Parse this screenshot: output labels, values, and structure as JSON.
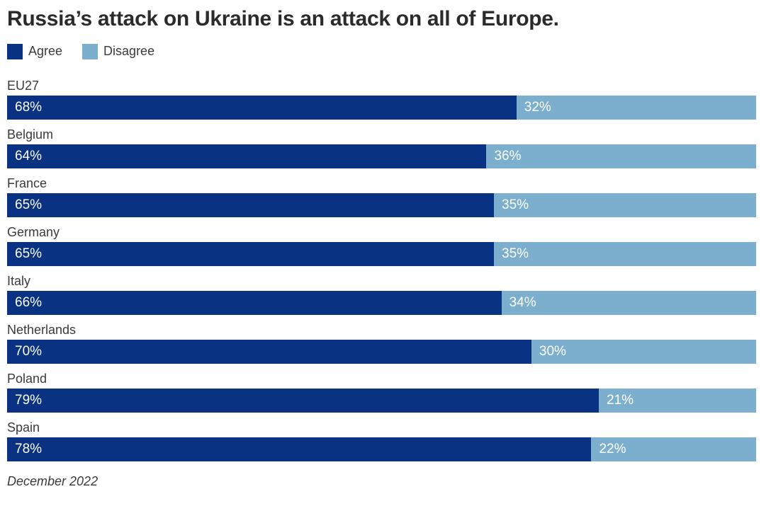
{
  "header": {
    "title": "Russia’s attack on Ukraine is an attack on all of Europe."
  },
  "legend": {
    "items": [
      {
        "label": "Agree",
        "color": "#0a3282"
      },
      {
        "label": "Disagree",
        "color": "#7cafce"
      }
    ]
  },
  "footer": {
    "note": "December 2022"
  },
  "chart_data": {
    "type": "bar",
    "orientation": "horizontal",
    "stacked": true,
    "unit": "%",
    "title": "Russia’s attack on Ukraine is an attack on all of Europe.",
    "note": "December 2022",
    "categories": [
      "EU27",
      "Belgium",
      "France",
      "Germany",
      "Italy",
      "Netherlands",
      "Poland",
      "Spain"
    ],
    "series": [
      {
        "name": "Agree",
        "color": "#0a3282",
        "values": [
          68,
          64,
          65,
          65,
          66,
          70,
          79,
          78
        ]
      },
      {
        "name": "Disagree",
        "color": "#7cafce",
        "values": [
          32,
          36,
          35,
          35,
          34,
          30,
          21,
          22
        ]
      }
    ],
    "value_label_format": "{value}%",
    "value_label_position": "inside-start",
    "value_label_color": "#ffffff",
    "xlim": [
      0,
      100
    ],
    "grid": false,
    "legend_position": "top-left"
  }
}
